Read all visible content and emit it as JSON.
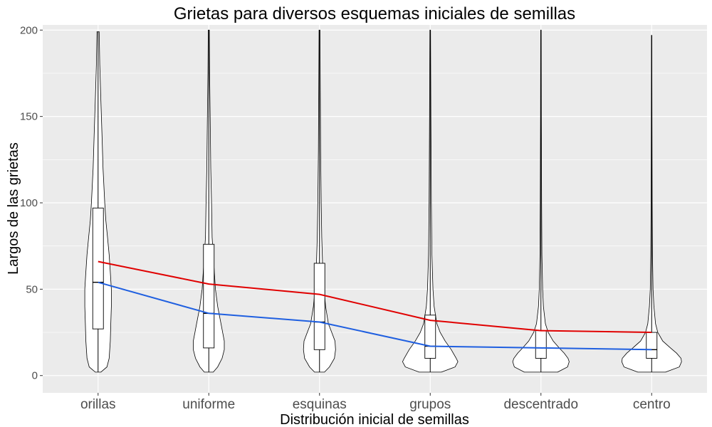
{
  "chart_data": {
    "type": "violin",
    "title": "Grietas para diversos esquemas iniciales de semillas",
    "xlabel": "Distribución inicial de semillas",
    "ylabel": "Largos de las grietas",
    "categories": [
      "orillas",
      "uniforme",
      "esquinas",
      "grupos",
      "descentrado",
      "centro"
    ],
    "ylim": [
      -10,
      203
    ],
    "yticks": [
      0,
      50,
      100,
      150,
      200
    ],
    "grid": true,
    "panel_background": "#EBEBEB",
    "boxplots": [
      {
        "category": "orillas",
        "q1": 27,
        "median": 54,
        "q3": 97,
        "min": 2,
        "max": 199
      },
      {
        "category": "uniforme",
        "q1": 16,
        "median": 36,
        "q3": 76,
        "min": 2,
        "max": 200
      },
      {
        "category": "esquinas",
        "q1": 15,
        "median": 31,
        "q3": 65,
        "min": 2,
        "max": 200
      },
      {
        "category": "grupos",
        "q1": 10,
        "median": 17,
        "q3": 35,
        "min": 2,
        "max": 200
      },
      {
        "category": "descentrado",
        "q1": 10,
        "median": 16,
        "q3": 26,
        "min": 2,
        "max": 200
      },
      {
        "category": "centro",
        "q1": 10,
        "median": 15,
        "q3": 25,
        "min": 2,
        "max": 197
      }
    ],
    "violins": [
      {
        "category": "orillas",
        "profile": [
          [
            2,
            0.05
          ],
          [
            5,
            0.16
          ],
          [
            10,
            0.2
          ],
          [
            20,
            0.22
          ],
          [
            30,
            0.23
          ],
          [
            40,
            0.24
          ],
          [
            50,
            0.24
          ],
          [
            60,
            0.22
          ],
          [
            70,
            0.2
          ],
          [
            80,
            0.17
          ],
          [
            90,
            0.14
          ],
          [
            100,
            0.12
          ],
          [
            120,
            0.09
          ],
          [
            140,
            0.07
          ],
          [
            160,
            0.05
          ],
          [
            180,
            0.03
          ],
          [
            199,
            0.02
          ]
        ]
      },
      {
        "category": "uniforme",
        "profile": [
          [
            2,
            0.08
          ],
          [
            5,
            0.16
          ],
          [
            10,
            0.24
          ],
          [
            15,
            0.28
          ],
          [
            20,
            0.28
          ],
          [
            30,
            0.22
          ],
          [
            40,
            0.16
          ],
          [
            50,
            0.12
          ],
          [
            60,
            0.1
          ],
          [
            70,
            0.08
          ],
          [
            80,
            0.06
          ],
          [
            100,
            0.05
          ],
          [
            120,
            0.035
          ],
          [
            150,
            0.025
          ],
          [
            175,
            0.015
          ],
          [
            200,
            0.01
          ]
        ]
      },
      {
        "category": "esquinas",
        "profile": [
          [
            2,
            0.09
          ],
          [
            5,
            0.18
          ],
          [
            10,
            0.27
          ],
          [
            15,
            0.29
          ],
          [
            20,
            0.28
          ],
          [
            25,
            0.22
          ],
          [
            30,
            0.16
          ],
          [
            40,
            0.11
          ],
          [
            50,
            0.08
          ],
          [
            60,
            0.06
          ],
          [
            80,
            0.04
          ],
          [
            100,
            0.03
          ],
          [
            130,
            0.02
          ],
          [
            160,
            0.015
          ],
          [
            200,
            0.008
          ]
        ]
      },
      {
        "category": "grupos",
        "profile": [
          [
            2,
            0.2
          ],
          [
            5,
            0.45
          ],
          [
            8,
            0.5
          ],
          [
            10,
            0.47
          ],
          [
            15,
            0.38
          ],
          [
            20,
            0.27
          ],
          [
            25,
            0.18
          ],
          [
            30,
            0.12
          ],
          [
            40,
            0.07
          ],
          [
            50,
            0.05
          ],
          [
            70,
            0.03
          ],
          [
            100,
            0.02
          ],
          [
            150,
            0.012
          ],
          [
            200,
            0.006
          ]
        ]
      },
      {
        "category": "descentrado",
        "profile": [
          [
            2,
            0.3
          ],
          [
            5,
            0.48
          ],
          [
            8,
            0.51
          ],
          [
            10,
            0.49
          ],
          [
            13,
            0.42
          ],
          [
            16,
            0.33
          ],
          [
            20,
            0.22
          ],
          [
            25,
            0.13
          ],
          [
            30,
            0.08
          ],
          [
            40,
            0.045
          ],
          [
            50,
            0.03
          ],
          [
            70,
            0.018
          ],
          [
            100,
            0.012
          ],
          [
            150,
            0.007
          ],
          [
            200,
            0.004
          ]
        ]
      },
      {
        "category": "centro",
        "profile": [
          [
            2,
            0.25
          ],
          [
            5,
            0.5
          ],
          [
            8,
            0.54
          ],
          [
            10,
            0.53
          ],
          [
            13,
            0.45
          ],
          [
            16,
            0.34
          ],
          [
            20,
            0.2
          ],
          [
            25,
            0.11
          ],
          [
            30,
            0.07
          ],
          [
            40,
            0.04
          ],
          [
            50,
            0.025
          ],
          [
            70,
            0.015
          ],
          [
            100,
            0.01
          ],
          [
            150,
            0.006
          ],
          [
            197,
            0.003
          ]
        ]
      }
    ],
    "series": [
      {
        "color": "#E00000",
        "values": [
          66,
          53,
          47,
          32,
          26,
          25
        ]
      },
      {
        "color": "#1F5FE0",
        "values": [
          54,
          36,
          31,
          17,
          16,
          15
        ]
      }
    ]
  }
}
